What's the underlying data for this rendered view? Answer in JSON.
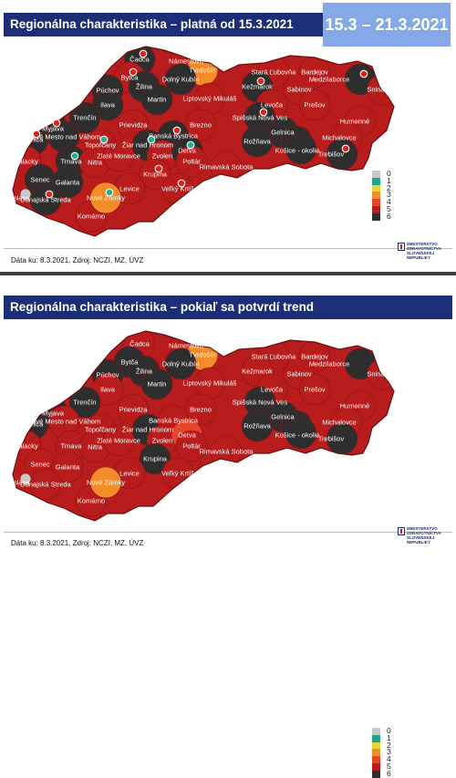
{
  "top_panel": {
    "title": "Regionálna charakteristika – platná od 15.3.2021",
    "date_range": "15.3 – 21.3.2021",
    "footer": "Dáta ku: 8.3.2021, Zdroj: NCZI, MZ, ÚVZ",
    "ministry_lines": [
      "MINISTERSTVO",
      "ZDRAVOTNÍCTVA",
      "SLOVENSKEJ REPUBLIKY"
    ]
  },
  "bottom_panel": {
    "title": "Regionálna charakteristika – pokiaľ sa potvrdí trend",
    "footer": "Dáta ku: 8.3.2021, Zdroj: NCZI, MZ, ÚVZ",
    "ministry_lines": [
      "MINISTERSTVO",
      "ZDRAVOTNÍCTVA",
      "SLOVENSKEJ REPUBLIKY"
    ]
  },
  "legend": [
    {
      "label": "0",
      "color": "#c8c8c8"
    },
    {
      "label": "1",
      "color": "#1fa38a"
    },
    {
      "label": "2",
      "color": "#e8d53a"
    },
    {
      "label": "3",
      "color": "#f28c28"
    },
    {
      "label": "4",
      "color": "#e6452b"
    },
    {
      "label": "5",
      "color": "#b81c1c"
    },
    {
      "label": "6",
      "color": "#2e2e2e"
    }
  ],
  "colors": {
    "level_3": "#f28c28",
    "level_4": "#e6452b",
    "level_5": "#b81c1c",
    "level_6": "#2e2e2e",
    "title_bar": "#1d2e78",
    "date_box": "#85a9e8"
  },
  "districts": [
    {
      "name": "Čadca",
      "top": 6,
      "bottom": 5
    },
    {
      "name": "Námestovo",
      "top": 5,
      "bottom": 5
    },
    {
      "name": "Tvrdošín",
      "top": 3,
      "bottom": 3
    },
    {
      "name": "Bytča",
      "top": 5,
      "bottom": 6
    },
    {
      "name": "Žilina",
      "top": 6,
      "bottom": 6
    },
    {
      "name": "Dolný Kubín",
      "top": 6,
      "bottom": 6
    },
    {
      "name": "Púchov",
      "top": 6,
      "bottom": 6
    },
    {
      "name": "Ilava",
      "top": 6,
      "bottom": 5
    },
    {
      "name": "Martin",
      "top": 6,
      "bottom": 6
    },
    {
      "name": "Liptovský Mikuláš",
      "top": 5,
      "bottom": 5
    },
    {
      "name": "Stará Ľubovňa",
      "top": 5,
      "bottom": 5
    },
    {
      "name": "Bardejov",
      "top": 5,
      "bottom": 5
    },
    {
      "name": "Medzilaborce",
      "top": 6,
      "bottom": 6
    },
    {
      "name": "Kežmarok",
      "top": 6,
      "bottom": 5
    },
    {
      "name": "Sabinov",
      "top": 5,
      "bottom": 5
    },
    {
      "name": "Snina",
      "top": 5,
      "bottom": 5
    },
    {
      "name": "Levoča",
      "top": 5,
      "bottom": 5
    },
    {
      "name": "Prešov",
      "top": 5,
      "bottom": 5
    },
    {
      "name": "Trenčín",
      "top": 6,
      "bottom": 6
    },
    {
      "name": "Prievidza",
      "top": 5,
      "bottom": 5
    },
    {
      "name": "Brezno",
      "top": 5,
      "bottom": 5
    },
    {
      "name": "Spišská Nová Ves",
      "top": 6,
      "bottom": 6
    },
    {
      "name": "Humenné",
      "top": 5,
      "bottom": 5
    },
    {
      "name": "Myjava",
      "top": 6,
      "bottom": 6
    },
    {
      "name": "Nové Mesto nad Váhom",
      "top": 6,
      "bottom": 5
    },
    {
      "name": "Senica",
      "top": 6,
      "bottom": 6
    },
    {
      "name": "Topoľčany",
      "top": 5,
      "bottom": 5
    },
    {
      "name": "Žiar nad Hronom",
      "top": 6,
      "bottom": 6
    },
    {
      "name": "Banská Bystrica",
      "top": 6,
      "bottom": 5
    },
    {
      "name": "Gelnica",
      "top": 6,
      "bottom": 6
    },
    {
      "name": "Košice",
      "top": 6,
      "bottom": 6
    },
    {
      "name": "Michalovce",
      "top": 5,
      "bottom": 5
    },
    {
      "name": "Rožňava",
      "top": 6,
      "bottom": 6
    },
    {
      "name": "Košice - okolie",
      "top": 6,
      "bottom": 6
    },
    {
      "name": "Trebišov",
      "top": 6,
      "bottom": 6
    },
    {
      "name": "Malacky",
      "top": 5,
      "bottom": 5
    },
    {
      "name": "Trnava",
      "top": 6,
      "bottom": 5
    },
    {
      "name": "Nitra",
      "top": 5,
      "bottom": 5
    },
    {
      "name": "Zlaté Moravce",
      "top": 5,
      "bottom": 5
    },
    {
      "name": "Zvolen",
      "top": 5,
      "bottom": 5
    },
    {
      "name": "Detva",
      "top": 6,
      "bottom": 4
    },
    {
      "name": "Poltár",
      "top": 5,
      "bottom": 5
    },
    {
      "name": "Rimavská Sobota",
      "top": 5,
      "bottom": 5
    },
    {
      "name": "Krupina",
      "top": 5,
      "bottom": 6
    },
    {
      "name": "Senec",
      "top": 6,
      "bottom": 5
    },
    {
      "name": "Galanta",
      "top": 6,
      "bottom": 5
    },
    {
      "name": "Levice",
      "top": 5,
      "bottom": 5
    },
    {
      "name": "Veľký Krtíš",
      "top": 5,
      "bottom": 5
    },
    {
      "name": "Dunajská Streda",
      "top": 6,
      "bottom": 5
    },
    {
      "name": "Komárno",
      "top": 5,
      "bottom": 5
    },
    {
      "name": "Nové Zámky",
      "top": 3,
      "bottom": 3
    },
    {
      "name": "Bratislava",
      "top": 0,
      "bottom": 0
    }
  ],
  "top_markers": [
    {
      "district": "Čadca",
      "type": "red"
    },
    {
      "district": "Bytča",
      "type": "red"
    },
    {
      "district": "Kežmarok",
      "type": "red"
    },
    {
      "district": "Medzilaborce",
      "type": "red"
    },
    {
      "district": "Spišská Nová Ves",
      "type": "red"
    },
    {
      "district": "Myjava",
      "type": "red"
    },
    {
      "district": "Senica",
      "type": "red"
    },
    {
      "district": "Topoľčany",
      "type": "green"
    },
    {
      "district": "Žiar nad Hronom",
      "type": "green"
    },
    {
      "district": "Banská Bystrica",
      "type": "red"
    },
    {
      "district": "Detva",
      "type": "green"
    },
    {
      "district": "Trnava",
      "type": "green"
    },
    {
      "district": "Krupina",
      "type": "red"
    },
    {
      "district": "Veľký Krtíš",
      "type": "red"
    },
    {
      "district": "Nové Zámky",
      "type": "green"
    },
    {
      "district": "Trebišov",
      "type": "red"
    },
    {
      "district": "Dunajská Streda",
      "type": "red"
    }
  ]
}
